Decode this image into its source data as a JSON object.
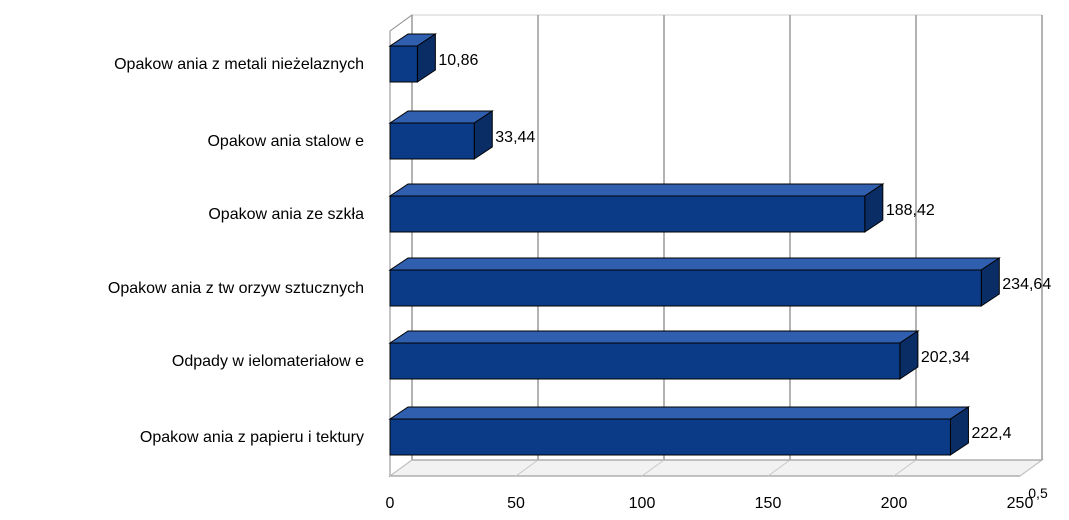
{
  "chart_data": {
    "type": "bar",
    "orientation": "horizontal",
    "three_d": true,
    "categories": [
      "Opakow ania z metali nieżelaznych",
      "Opakow ania stalow e",
      "Opakow ania ze szkła",
      "Opakow ania z tw orzyw sztucznych",
      "Odpady w ielomateriałow e",
      "Opakow ania z papieru i tektury"
    ],
    "values": [
      10.86,
      33.44,
      188.42,
      234.64,
      202.34,
      222.4
    ],
    "value_labels": [
      "10,86",
      "33,44",
      "188,42",
      "234,64",
      "202,34",
      "222,4"
    ],
    "x_ticks": [
      "0",
      "50",
      "100",
      "150",
      "200",
      "250"
    ],
    "xlim": [
      0,
      250
    ],
    "corner_label": "0,5",
    "grid": true,
    "legend": "none",
    "title": "",
    "xlabel": "",
    "ylabel": "",
    "colors": {
      "bar_front": "#0b3b86",
      "bar_top": "#2f5fae",
      "bar_side": "#0a2d66",
      "bar_edge": "#000000",
      "grid": "#9a9a9a",
      "floor": "#f2f2f2"
    }
  }
}
